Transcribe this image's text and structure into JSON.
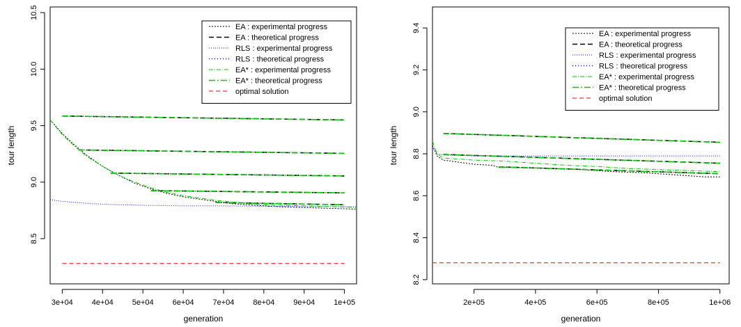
{
  "chart_data": [
    {
      "type": "line",
      "xlabel": "generation",
      "ylabel": "tour length",
      "xlim": [
        27000,
        103000
      ],
      "ylim": [
        8.1,
        10.55
      ],
      "x_ticks": [
        30000,
        40000,
        50000,
        60000,
        70000,
        80000,
        90000,
        100000
      ],
      "x_tick_labels": [
        "3e+04",
        "4e+04",
        "5e+04",
        "6e+04",
        "7e+04",
        "8e+04",
        "9e+04",
        "1e+05"
      ],
      "y_ticks": [
        8.5,
        9.0,
        9.5,
        10.0,
        10.5
      ],
      "y_tick_labels": [
        "8.5",
        "9.0",
        "9.5",
        "10.0",
        "10.5"
      ],
      "grid": false,
      "legend_position": "top-right",
      "legend": [
        "EA : experimental progress",
        "EA : theoretical progress",
        "RLS : experimental progress",
        "RLS : theoretical progress",
        "EA* : experimental progress",
        "EA* : theoretical progress",
        "optimal solution"
      ],
      "series": [
        {
          "name": "EA : experimental progress",
          "color": "#000000",
          "dash": "2,2",
          "width": 1,
          "x": [
            27000,
            30000,
            33000,
            36000,
            40000,
            44000,
            48000,
            52000,
            56000,
            60000,
            64000,
            68000,
            72000,
            76000,
            80000,
            85000,
            90000,
            95000,
            100000,
            103000
          ],
          "y": [
            9.55,
            9.43,
            9.33,
            9.24,
            9.14,
            9.06,
            8.99,
            8.94,
            8.9,
            8.87,
            8.85,
            8.83,
            8.81,
            8.8,
            8.79,
            8.78,
            8.775,
            8.77,
            8.765,
            8.76
          ]
        },
        {
          "name": "EA : theoretical progress",
          "color": "#000000",
          "dash": "7,4",
          "width": 1.6,
          "segments": [
            {
              "x": [
                30000,
                100000
              ],
              "y": [
                9.585,
                9.55
              ]
            },
            {
              "x": [
                34000,
                100000
              ],
              "y": [
                9.285,
                9.255
              ]
            },
            {
              "x": [
                42000,
                100000
              ],
              "y": [
                9.08,
                9.055
              ]
            },
            {
              "x": [
                52000,
                100000
              ],
              "y": [
                8.925,
                8.905
              ]
            },
            {
              "x": [
                68000,
                100000
              ],
              "y": [
                8.82,
                8.8
              ]
            }
          ]
        },
        {
          "name": "RLS : experimental progress",
          "color": "#0000ff",
          "dash": "1,2",
          "width": 1,
          "x": [
            27000,
            30000,
            35000,
            40000,
            45000,
            50000,
            60000,
            70000,
            80000,
            90000,
            100000,
            103000
          ],
          "y": [
            8.845,
            8.83,
            8.815,
            8.805,
            8.8,
            8.795,
            8.79,
            8.79,
            8.787,
            8.785,
            8.783,
            8.782
          ]
        },
        {
          "name": "EA* : experimental progress",
          "color": "#00cc00",
          "dash": "6,2,1,2",
          "width": 1,
          "x": [
            27000,
            30000,
            33000,
            36000,
            40000,
            44000,
            48000,
            52000,
            56000,
            60000,
            64000,
            68000,
            72000,
            76000,
            80000,
            85000,
            90000,
            95000,
            100000,
            103000
          ],
          "y": [
            9.55,
            9.42,
            9.32,
            9.23,
            9.14,
            9.06,
            9.0,
            8.95,
            8.91,
            8.88,
            8.86,
            8.84,
            8.825,
            8.81,
            8.8,
            8.795,
            8.79,
            8.785,
            8.78,
            8.775
          ]
        },
        {
          "name": "EA* : theoretical progress",
          "color": "#00cc00",
          "dash": "9,3,2,3",
          "width": 1.6,
          "segments": [
            {
              "x": [
                30000,
                100000
              ],
              "y": [
                9.585,
                9.55
              ]
            },
            {
              "x": [
                34000,
                100000
              ],
              "y": [
                9.285,
                9.255
              ]
            },
            {
              "x": [
                42000,
                100000
              ],
              "y": [
                9.08,
                9.055
              ]
            },
            {
              "x": [
                52000,
                100000
              ],
              "y": [
                8.925,
                8.905
              ]
            },
            {
              "x": [
                68000,
                100000
              ],
              "y": [
                8.82,
                8.8
              ]
            }
          ]
        },
        {
          "name": "optimal solution",
          "color": "#ff0000",
          "dash": "6,4",
          "width": 1,
          "x": [
            30000,
            100000
          ],
          "y": [
            8.28,
            8.28
          ]
        }
      ]
    },
    {
      "type": "line",
      "xlabel": "generation",
      "ylabel": "tour length",
      "xlim": [
        65000,
        1030000
      ],
      "ylim": [
        8.18,
        9.5
      ],
      "x_ticks": [
        200000,
        400000,
        600000,
        800000,
        1000000
      ],
      "x_tick_labels": [
        "2e+05",
        "4e+05",
        "6e+05",
        "8e+05",
        "1e+06"
      ],
      "y_ticks": [
        8.2,
        8.4,
        8.6,
        8.8,
        9.0,
        9.2,
        9.4
      ],
      "y_tick_labels": [
        "8.2",
        "8.4",
        "8.6",
        "8.8",
        "9.0",
        "9.2",
        "9.4"
      ],
      "grid": false,
      "legend_position": "top-right",
      "legend": [
        "EA : experimental progress",
        "EA : theoretical progress",
        "RLS : experimental progress",
        "RLS : theoretical progress",
        "EA* : experimental progress",
        "EA* : theoretical progress",
        "optimal solution"
      ],
      "series": [
        {
          "name": "EA : experimental progress",
          "color": "#000000",
          "dash": "2,2",
          "width": 1,
          "x": [
            65000,
            80000,
            100000,
            150000,
            200000,
            260000,
            280000,
            350000,
            450000,
            550000,
            650000,
            750000,
            850000,
            950000,
            1000000
          ],
          "y": [
            8.84,
            8.79,
            8.77,
            8.76,
            8.75,
            8.745,
            8.735,
            8.735,
            8.73,
            8.725,
            8.715,
            8.71,
            8.7,
            8.69,
            8.69
          ]
        },
        {
          "name": "EA : theoretical progress",
          "color": "#000000",
          "dash": "7,4",
          "width": 1.6,
          "segments": [
            {
              "x": [
                100000,
                1000000
              ],
              "y": [
                8.897,
                8.855
              ]
            },
            {
              "x": [
                100000,
                1000000
              ],
              "y": [
                8.797,
                8.755
              ]
            },
            {
              "x": [
                280000,
                1000000
              ],
              "y": [
                8.738,
                8.705
              ]
            }
          ]
        },
        {
          "name": "RLS : experimental progress",
          "color": "#0000ff",
          "dash": "1,2",
          "width": 1,
          "x": [
            65000,
            80000,
            100000,
            200000,
            400000,
            600000,
            800000,
            1000000
          ],
          "y": [
            8.83,
            8.8,
            8.795,
            8.79,
            8.79,
            8.79,
            8.79,
            8.79
          ]
        },
        {
          "name": "EA* : experimental progress",
          "color": "#00cc00",
          "dash": "6,2,1,2",
          "width": 1,
          "x": [
            65000,
            80000,
            100000,
            200000,
            300000,
            400000,
            500000,
            600000,
            700000,
            800000,
            900000,
            1000000
          ],
          "y": [
            8.86,
            8.8,
            8.78,
            8.77,
            8.765,
            8.755,
            8.745,
            8.74,
            8.73,
            8.725,
            8.72,
            8.715
          ]
        },
        {
          "name": "EA* : theoretical progress",
          "color": "#00cc00",
          "dash": "9,3,2,3",
          "width": 1.6,
          "segments": [
            {
              "x": [
                100000,
                1000000
              ],
              "y": [
                8.897,
                8.855
              ]
            },
            {
              "x": [
                100000,
                1000000
              ],
              "y": [
                8.797,
                8.755
              ]
            },
            {
              "x": [
                280000,
                1000000
              ],
              "y": [
                8.738,
                8.705
              ]
            }
          ]
        },
        {
          "name": "optimal solution",
          "color": "#ff0000",
          "dash": "6,4",
          "width": 1,
          "x": [
            65000,
            1000000
          ],
          "y": [
            8.28,
            8.28
          ]
        }
      ]
    }
  ]
}
